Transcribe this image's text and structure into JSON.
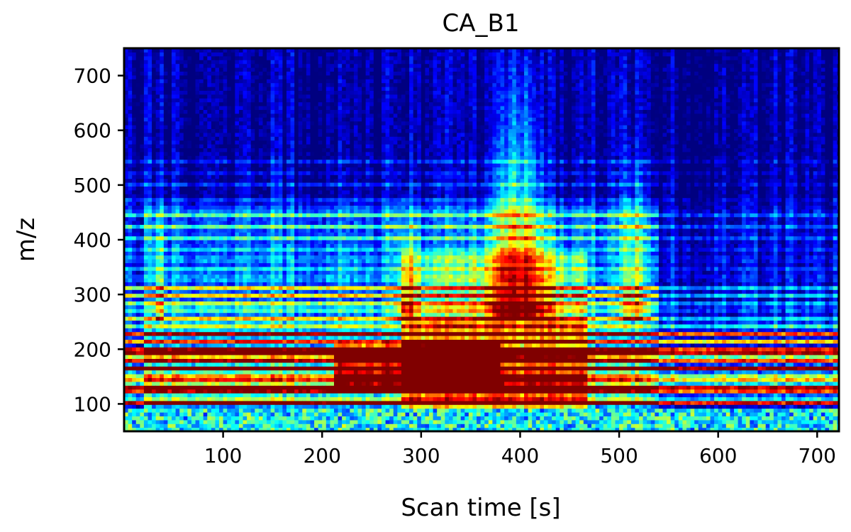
{
  "chart_data": {
    "type": "heatmap",
    "title": "CA_B1",
    "xlabel": "Scan time [s]",
    "ylabel": "m/z",
    "xlim": [
      0,
      722
    ],
    "ylim": [
      50,
      750
    ],
    "x_ticks": [
      100,
      200,
      300,
      400,
      500,
      600,
      700
    ],
    "y_ticks": [
      100,
      200,
      300,
      400,
      500,
      600,
      700
    ],
    "colormap": "jet",
    "colors": {
      "low": "#00007f",
      "high": "#7f0000",
      "frame": "#000000"
    },
    "intensity_bands": [
      {
        "mz_range": [
          95,
          110
        ],
        "time_range": [
          0,
          722
        ],
        "level": "high"
      },
      {
        "mz_range": [
          120,
          150
        ],
        "time_range": [
          10,
          720
        ],
        "level": "high"
      },
      {
        "mz_range": [
          160,
          205
        ],
        "time_range": [
          30,
          520
        ],
        "level": "high"
      },
      {
        "mz_range": [
          215,
          245
        ],
        "time_range": [
          280,
          470
        ],
        "level": "high"
      },
      {
        "mz_range": [
          250,
          350
        ],
        "time_range": [
          0,
          540
        ],
        "level": "medium"
      },
      {
        "mz_range": [
          350,
          460
        ],
        "time_range": [
          0,
          540
        ],
        "level": "low-medium"
      },
      {
        "mz_range": [
          300,
          750
        ],
        "time_range": [
          370,
          430
        ],
        "level": "medium"
      },
      {
        "mz_range": [
          460,
          750
        ],
        "time_range": [
          0,
          722
        ],
        "level": "low"
      }
    ]
  }
}
